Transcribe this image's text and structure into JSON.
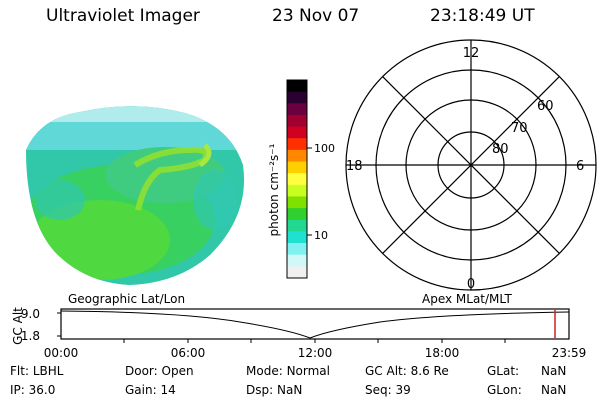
{
  "header": {
    "instrument": "Ultraviolet Imager",
    "date": "23 Nov 07",
    "time": "23:18:49 UT"
  },
  "colorbar": {
    "label": "photon cm⁻²s⁻¹",
    "ticks": [
      "100",
      "10"
    ],
    "scale": "log",
    "colors": [
      "#000000",
      "#2a0030",
      "#6a0040",
      "#a00030",
      "#d00020",
      "#ff3000",
      "#ff8800",
      "#ffd000",
      "#ffff40",
      "#c8ff20",
      "#80e000",
      "#30d030",
      "#20d890",
      "#20e0d0",
      "#80f0f0",
      "#d0f8f8",
      "#f0f0f0"
    ]
  },
  "polar_grid": {
    "mlt_labels": [
      "12",
      "18",
      "6",
      "0"
    ],
    "lat_labels": [
      "60",
      "70",
      "80"
    ]
  },
  "timeline": {
    "ylabel": "GC Alt",
    "left_title": "Geographic Lat/Lon",
    "right_title": "Apex MLat/MLT",
    "y_ticks": [
      "9.0",
      "1.8"
    ],
    "x_ticks": [
      "00:00",
      "06:00",
      "12:00",
      "18:00",
      "23:59"
    ],
    "marker_time": "23:18:49"
  },
  "status": [
    [
      {
        "label": "Flt:",
        "value": "LBHL"
      },
      {
        "label": "Door:",
        "value": "Open"
      },
      {
        "label": "Mode:",
        "value": "Normal"
      },
      {
        "label": "GC Alt:",
        "value": "8.6 Re"
      },
      {
        "label": "GLat:",
        "value": "NaN"
      }
    ],
    [
      {
        "label": "IP:",
        "value": "36.0"
      },
      {
        "label": "Gain:",
        "value": "14"
      },
      {
        "label": "Dsp:",
        "value": "NaN"
      },
      {
        "label": "Seq:",
        "value": "39"
      },
      {
        "label": "GLon:",
        "value": "NaN"
      }
    ]
  ]
}
